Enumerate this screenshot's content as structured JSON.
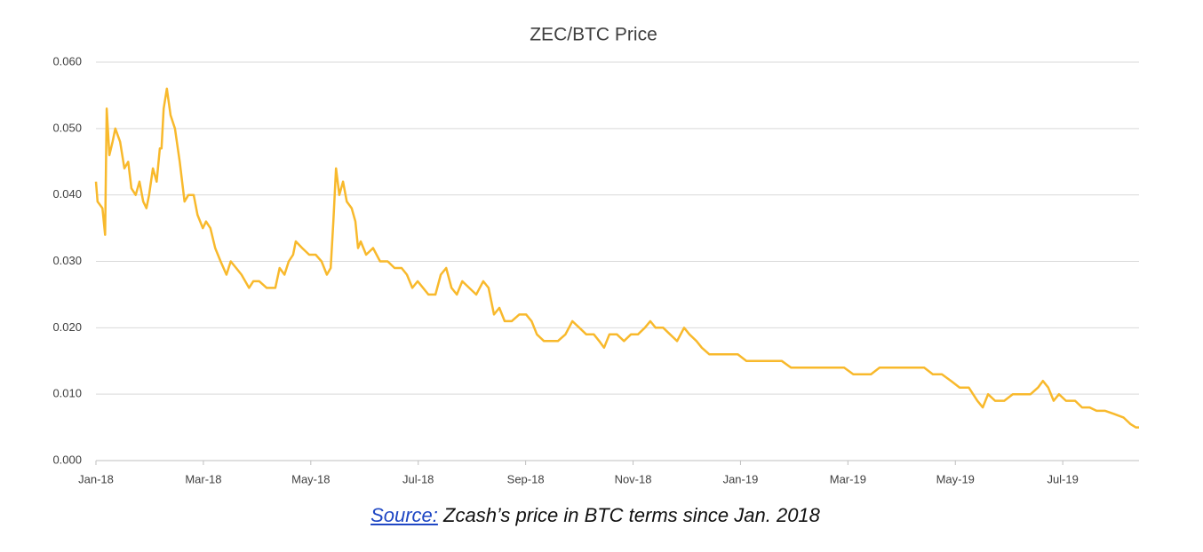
{
  "chart_data": {
    "type": "line",
    "title": "ZEC/BTC Price",
    "x": [
      0,
      0.03,
      0.12,
      0.17,
      0.2,
      0.25,
      0.31,
      0.36,
      0.45,
      0.53,
      0.6,
      0.66,
      0.74,
      0.81,
      0.88,
      0.94,
      0.99,
      1.06,
      1.13,
      1.19,
      1.22,
      1.26,
      1.32,
      1.39,
      1.47,
      1.56,
      1.62,
      1.65,
      1.72,
      1.82,
      1.89,
      1.99,
      2.05,
      2.13,
      2.22,
      2.32,
      2.43,
      2.51,
      2.61,
      2.71,
      2.85,
      2.93,
      3.04,
      3.18,
      3.34,
      3.42,
      3.51,
      3.59,
      3.67,
      3.72,
      3.84,
      3.97,
      4.09,
      4.2,
      4.3,
      4.37,
      4.42,
      4.47,
      4.53,
      4.6,
      4.67,
      4.76,
      4.83,
      4.88,
      4.93,
      5.03,
      5.16,
      5.29,
      5.43,
      5.56,
      5.69,
      5.79,
      5.89,
      5.99,
      6.09,
      6.19,
      6.32,
      6.42,
      6.52,
      6.62,
      6.72,
      6.82,
      6.95,
      7.08,
      7.21,
      7.31,
      7.41,
      7.51,
      7.61,
      7.74,
      7.88,
      8.01,
      8.11,
      8.21,
      8.34,
      8.47,
      8.6,
      8.74,
      8.87,
      9.0,
      9.13,
      9.27,
      9.37,
      9.46,
      9.56,
      9.7,
      9.83,
      9.96,
      10.09,
      10.22,
      10.32,
      10.42,
      10.56,
      10.69,
      10.82,
      10.95,
      11.05,
      11.18,
      11.28,
      11.42,
      11.55,
      11.68,
      11.81,
      11.95,
      12.11,
      12.28,
      12.44,
      12.61,
      12.77,
      12.94,
      13.1,
      13.27,
      13.43,
      13.6,
      13.77,
      13.93,
      14.1,
      14.26,
      14.43,
      14.59,
      14.76,
      14.92,
      15.09,
      15.25,
      15.42,
      15.58,
      15.75,
      15.92,
      16.08,
      16.25,
      16.41,
      16.51,
      16.61,
      16.74,
      16.91,
      17.07,
      17.24,
      17.4,
      17.54,
      17.63,
      17.73,
      17.83,
      17.93,
      18.06,
      18.23,
      18.36,
      18.5,
      18.63,
      18.79,
      18.96,
      19.13,
      19.26,
      19.36,
      19.42
    ],
    "series": [
      {
        "name": "ZEC/BTC",
        "color": "#f8b92c",
        "values": [
          0.042,
          0.039,
          0.038,
          0.034,
          0.053,
          0.046,
          0.048,
          0.05,
          0.048,
          0.044,
          0.045,
          0.041,
          0.04,
          0.042,
          0.039,
          0.038,
          0.04,
          0.044,
          0.042,
          0.047,
          0.047,
          0.053,
          0.056,
          0.052,
          0.05,
          0.045,
          0.041,
          0.039,
          0.04,
          0.04,
          0.037,
          0.035,
          0.036,
          0.035,
          0.032,
          0.03,
          0.028,
          0.03,
          0.029,
          0.028,
          0.026,
          0.027,
          0.027,
          0.026,
          0.026,
          0.029,
          0.028,
          0.03,
          0.031,
          0.033,
          0.032,
          0.031,
          0.031,
          0.03,
          0.028,
          0.029,
          0.036,
          0.044,
          0.04,
          0.042,
          0.039,
          0.038,
          0.036,
          0.032,
          0.033,
          0.031,
          0.032,
          0.03,
          0.03,
          0.029,
          0.029,
          0.028,
          0.026,
          0.027,
          0.026,
          0.025,
          0.025,
          0.028,
          0.029,
          0.026,
          0.025,
          0.027,
          0.026,
          0.025,
          0.027,
          0.026,
          0.022,
          0.023,
          0.021,
          0.021,
          0.022,
          0.022,
          0.021,
          0.019,
          0.018,
          0.018,
          0.018,
          0.019,
          0.021,
          0.02,
          0.019,
          0.019,
          0.018,
          0.017,
          0.019,
          0.019,
          0.018,
          0.019,
          0.019,
          0.02,
          0.021,
          0.02,
          0.02,
          0.019,
          0.018,
          0.02,
          0.019,
          0.018,
          0.017,
          0.016,
          0.016,
          0.016,
          0.016,
          0.016,
          0.015,
          0.015,
          0.015,
          0.015,
          0.015,
          0.014,
          0.014,
          0.014,
          0.014,
          0.014,
          0.014,
          0.014,
          0.013,
          0.013,
          0.013,
          0.014,
          0.014,
          0.014,
          0.014,
          0.014,
          0.014,
          0.013,
          0.013,
          0.012,
          0.011,
          0.011,
          0.009,
          0.008,
          0.01,
          0.009,
          0.009,
          0.01,
          0.01,
          0.01,
          0.011,
          0.012,
          0.011,
          0.009,
          0.01,
          0.009,
          0.009,
          0.008,
          0.008,
          0.0075,
          0.0075,
          0.007,
          0.0065,
          0.0055,
          0.005,
          0.005
        ]
      }
    ],
    "xlim": [
      0,
      19.42
    ],
    "xticks": [
      {
        "value": 0,
        "label": "Jan-18"
      },
      {
        "value": 2,
        "label": "Mar-18"
      },
      {
        "value": 4,
        "label": "May-18"
      },
      {
        "value": 6,
        "label": "Jul-18"
      },
      {
        "value": 8,
        "label": "Sep-18"
      },
      {
        "value": 10,
        "label": "Nov-18"
      },
      {
        "value": 12,
        "label": "Jan-19"
      },
      {
        "value": 14,
        "label": "Mar-19"
      },
      {
        "value": 16,
        "label": "May-19"
      },
      {
        "value": 18,
        "label": "Jul-19"
      }
    ],
    "ylim": [
      0,
      0.06
    ],
    "yticks": [
      {
        "value": 0,
        "label": "0.000"
      },
      {
        "value": 0.01,
        "label": "0.010"
      },
      {
        "value": 0.02,
        "label": "0.020"
      },
      {
        "value": 0.03,
        "label": "0.030"
      },
      {
        "value": 0.04,
        "label": "0.040"
      },
      {
        "value": 0.05,
        "label": "0.050"
      },
      {
        "value": 0.06,
        "label": "0.060"
      }
    ],
    "grid": true
  },
  "caption": {
    "link": "Source:",
    "text": " Zcash’s price in BTC terms since Jan. 2018"
  }
}
